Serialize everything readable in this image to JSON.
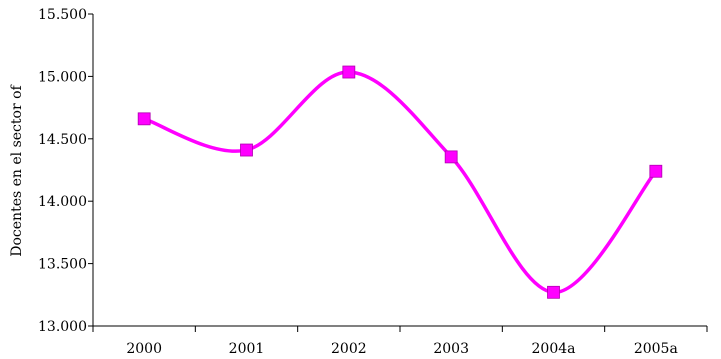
{
  "chart_data": {
    "type": "line",
    "title": "",
    "xlabel": "",
    "ylabel": "Docentes en el sector of",
    "categories": [
      "2000",
      "2001",
      "2002",
      "2003",
      "2004a",
      "2005a"
    ],
    "series": [
      {
        "values": [
          14660,
          14410,
          15035,
          14355,
          13270,
          14240
        ]
      }
    ],
    "ylim": [
      13000,
      15500
    ],
    "yticks": [
      13000,
      13500,
      14000,
      14500,
      15000,
      15500
    ],
    "ytick_labels": [
      "13.000",
      "13.500",
      "14.000",
      "14.500",
      "15.000",
      "15.500"
    ],
    "grid": false,
    "legend": "none",
    "line_color": "#FF00FF",
    "marker": "square",
    "smooth": true
  }
}
